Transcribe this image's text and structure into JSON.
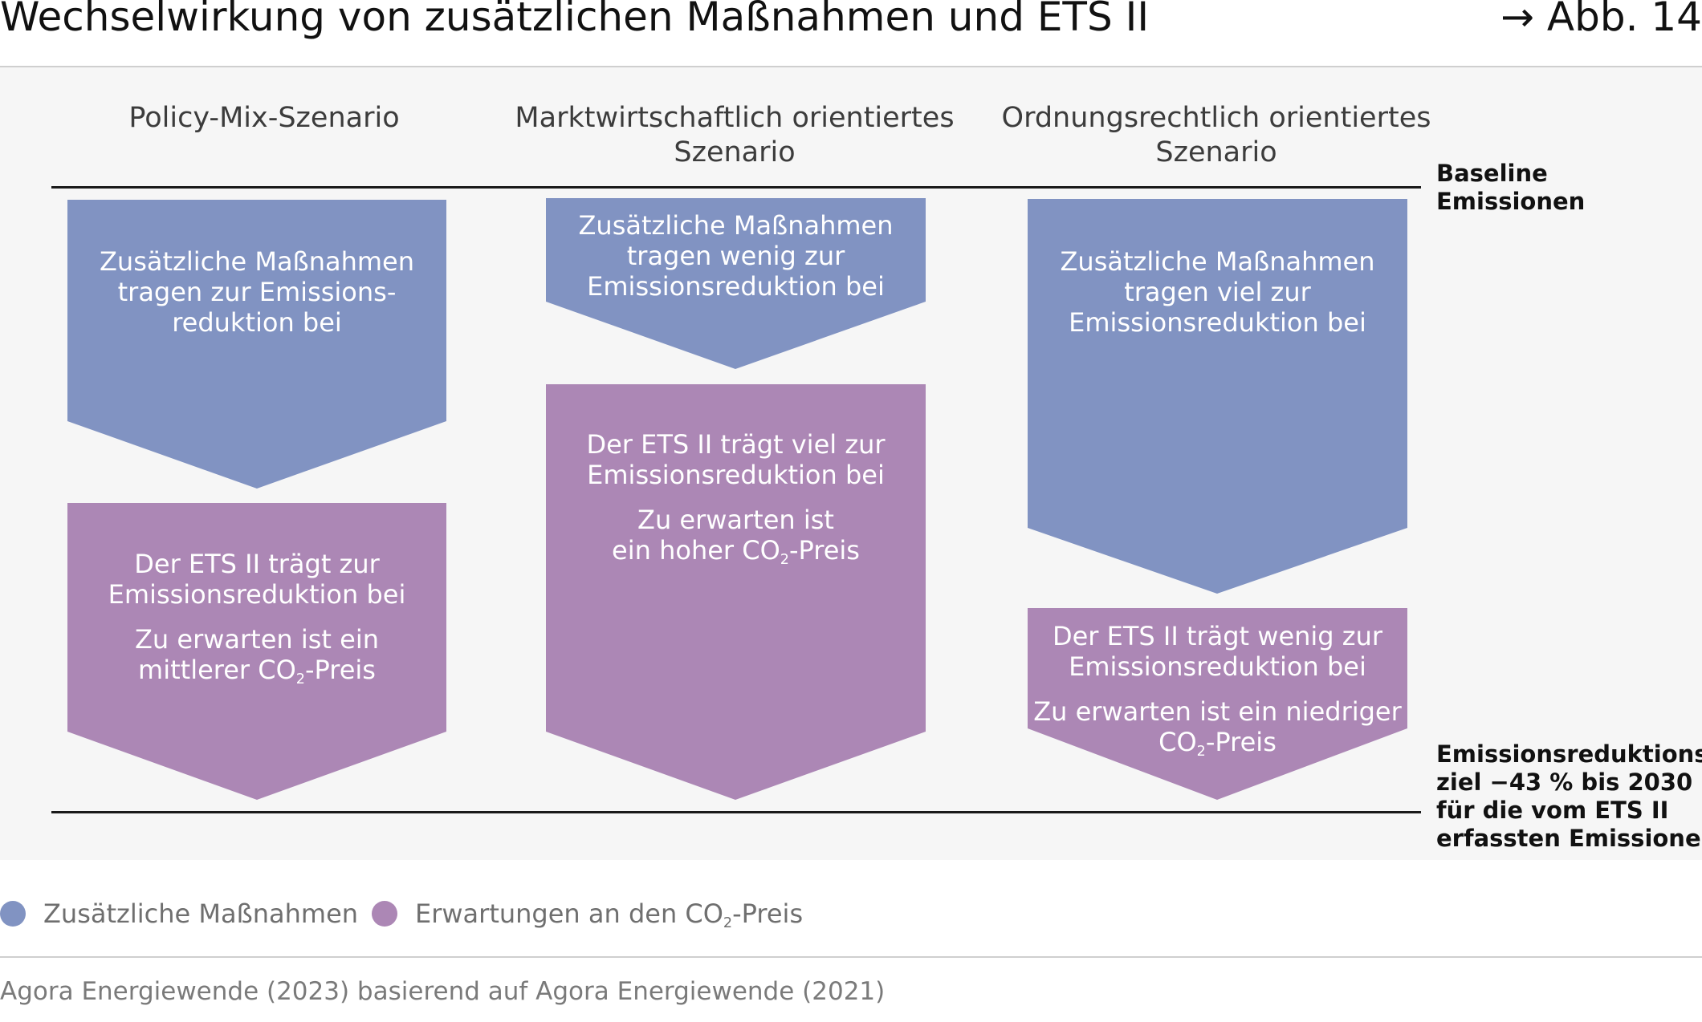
{
  "header": {
    "title": "Wechselwirkung von zusätzlichen Maßnahmen und ETS II",
    "figure_ref": "→ Abb. 14"
  },
  "diagram": {
    "baseline_label": [
      "Baseline",
      "Emissionen"
    ],
    "target_label": [
      "Emissionsreduktions-",
      "ziel −43 % bis 2030",
      "für die vom ETS II",
      "erfassten Emissionen"
    ],
    "columns": [
      {
        "heading": [
          "Policy-Mix-Szenario"
        ],
        "measures_text": [
          "Zusätzliche Maßnahmen",
          "tragen zur Emissions-",
          "reduktion bei"
        ],
        "ets_text": [
          "Der ETS II trägt zur",
          "Emissionsreduktion bei"
        ],
        "price_text": [
          "Zu erwarten ist ein",
          "mittlerer CO",
          "-Preis"
        ]
      },
      {
        "heading": [
          "Marktwirtschaftlich orientiertes",
          "Szenario"
        ],
        "measures_text": [
          "Zusätzliche Maßnahmen",
          "tragen wenig zur",
          "Emissionsreduktion bei"
        ],
        "ets_text": [
          "Der ETS II trägt viel zur",
          "Emissionsreduktion bei"
        ],
        "price_text": [
          "Zu erwarten ist",
          "ein hoher CO",
          "-Preis"
        ]
      },
      {
        "heading": [
          "Ordnungsrechtlich orientiertes",
          "Szenario"
        ],
        "measures_text": [
          "Zusätzliche Maßnahmen",
          "tragen viel zur",
          "Emissionsreduktion bei"
        ],
        "ets_text": [
          "Der ETS II trägt wenig zur",
          "Emissionsreduktion bei"
        ],
        "price_text": [
          "Zu erwarten ist ein niedriger",
          "CO",
          "-Preis"
        ]
      }
    ],
    "subscript_2": "2"
  },
  "legend": {
    "measures": {
      "label": "Zusätzliche Maßnahmen",
      "color": "#8193c2"
    },
    "co2": {
      "label_before": "Erwartungen an den CO",
      "label_sub": "2",
      "label_after": "-Preis",
      "color": "#ac87b5"
    }
  },
  "source": "Agora Energiewende (2023) basierend auf Agora Energiewende (2021)"
}
